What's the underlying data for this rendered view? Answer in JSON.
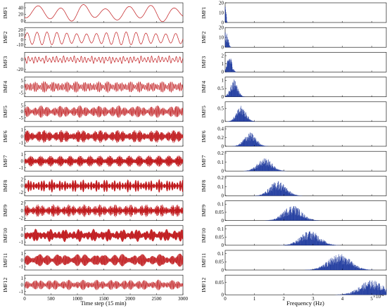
{
  "chart_data": [
    {
      "type": "line",
      "name": "IMF time series (left column)",
      "xlabel": "Time step (15 min)",
      "xlim": [
        0,
        3000
      ],
      "xticks": [
        0,
        500,
        1000,
        1500,
        2000,
        2500,
        3000
      ],
      "color": "#c0181b",
      "panels": [
        {
          "label": "IMF1",
          "yticks": [
            0,
            20,
            40
          ],
          "ylim": [
            -5,
            55
          ],
          "amplitude": 22,
          "offset": 24,
          "cycles": 7
        },
        {
          "label": "IMF2",
          "yticks": [
            -10,
            0,
            10,
            20
          ],
          "ylim": [
            -15,
            25
          ],
          "amplitude": 13,
          "offset": 3,
          "cycles": 16
        },
        {
          "label": "IMF3",
          "yticks": [
            -20,
            0
          ],
          "ylim": [
            -25,
            15
          ],
          "amplitude": 8,
          "offset": 0,
          "cycles": 45
        },
        {
          "label": "IMF4",
          "yticks": [
            -5,
            0,
            5
          ],
          "ylim": [
            -8,
            8
          ],
          "amplitude": 4.5,
          "offset": 0,
          "cycles": 95
        },
        {
          "label": "IMF5",
          "yticks": [
            -5,
            0,
            5
          ],
          "ylim": [
            -8,
            8
          ],
          "amplitude": 5,
          "offset": 0,
          "cycles": 180
        },
        {
          "label": "IMF6",
          "yticks": [
            -1,
            0,
            1
          ],
          "ylim": [
            -1.5,
            1.5
          ],
          "amplitude": 1.0,
          "offset": 0,
          "cycles": 320
        },
        {
          "label": "IMF7",
          "yticks": [
            -1,
            0,
            1
          ],
          "ylim": [
            -1.5,
            1.5
          ],
          "amplitude": 0.9,
          "offset": 0,
          "cycles": 420
        },
        {
          "label": "IMF8",
          "yticks": [
            -2,
            0,
            2
          ],
          "ylim": [
            -3,
            3
          ],
          "amplitude": 2.0,
          "offset": 0,
          "cycles": 520
        },
        {
          "label": "IMF9",
          "yticks": [
            -2,
            0,
            2
          ],
          "ylim": [
            -2.6,
            2.6
          ],
          "amplitude": 1.7,
          "offset": 0,
          "cycles": 620
        },
        {
          "label": "IMF10",
          "yticks": [
            -1,
            0,
            1
          ],
          "ylim": [
            -1.5,
            1.5
          ],
          "amplitude": 1.0,
          "offset": 0,
          "cycles": 720
        },
        {
          "label": "IMF11",
          "yticks": [
            -1,
            0,
            1
          ],
          "ylim": [
            -1.5,
            1.5
          ],
          "amplitude": 1.0,
          "offset": 0,
          "cycles": 820
        },
        {
          "label": "IMF12",
          "yticks": [
            -1,
            0,
            1
          ],
          "ylim": [
            -1.5,
            1.5
          ],
          "amplitude": 0.8,
          "offset": 0,
          "cycles": 920
        }
      ]
    },
    {
      "type": "bar",
      "name": "IMF spectra (right column)",
      "xlabel": "Frequency (Hz)",
      "xlim": [
        0,
        5.5
      ],
      "xticks": [
        0,
        1,
        2,
        3,
        4,
        5
      ],
      "x_multiplier": "×10",
      "x_exponent": "-4",
      "color": "#1f3a9e",
      "panels": [
        {
          "label": "IMF1",
          "yticks": [
            0,
            10,
            20
          ],
          "ylim": [
            0,
            20
          ],
          "peak_freq": 0.02,
          "peak": 16,
          "width": 0.02
        },
        {
          "label": "IMF2",
          "yticks": [
            0,
            10,
            20
          ],
          "ylim": [
            0,
            20
          ],
          "peak_freq": 0.06,
          "peak": 15,
          "width": 0.05
        },
        {
          "label": "IMF3",
          "yticks": [
            0,
            1,
            2
          ],
          "ylim": [
            0,
            2.4
          ],
          "peak_freq": 0.15,
          "peak": 2.1,
          "width": 0.08
        },
        {
          "label": "IMF4",
          "yticks": [
            0,
            0.5,
            1
          ],
          "ylim": [
            0,
            1.2
          ],
          "peak_freq": 0.3,
          "peak": 1.05,
          "width": 0.12
        },
        {
          "label": "IMF5",
          "yticks": [
            0,
            0.5
          ],
          "ylim": [
            0,
            0.75
          ],
          "peak_freq": 0.55,
          "peak": 0.6,
          "width": 0.16
        },
        {
          "label": "IMF6",
          "yticks": [
            0,
            0.2,
            0.4
          ],
          "ylim": [
            0,
            0.45
          ],
          "peak_freq": 0.85,
          "peak": 0.32,
          "width": 0.2
        },
        {
          "label": "IMF7",
          "yticks": [
            0,
            0.1,
            0.2
          ],
          "ylim": [
            0,
            0.22
          ],
          "peak_freq": 1.35,
          "peak": 0.15,
          "width": 0.24
        },
        {
          "label": "IMF8",
          "yticks": [
            0,
            0.1,
            0.2
          ],
          "ylim": [
            0,
            0.22
          ],
          "peak_freq": 1.8,
          "peak": 0.17,
          "width": 0.27
        },
        {
          "label": "IMF9",
          "yticks": [
            0,
            0.05,
            0.1
          ],
          "ylim": [
            0,
            0.12
          ],
          "peak_freq": 2.3,
          "peak": 0.095,
          "width": 0.3
        },
        {
          "label": "IMF10",
          "yticks": [
            0,
            0.05,
            0.1
          ],
          "ylim": [
            0,
            0.12
          ],
          "peak_freq": 2.9,
          "peak": 0.09,
          "width": 0.33
        },
        {
          "label": "IMF11",
          "yticks": [
            0,
            0.05,
            0.1
          ],
          "ylim": [
            0,
            0.12
          ],
          "peak_freq": 3.9,
          "peak": 0.1,
          "width": 0.38
        },
        {
          "label": "IMF12",
          "yticks": [
            0,
            0.05
          ],
          "ylim": [
            0,
            0.08
          ],
          "peak_freq": 5.0,
          "peak": 0.06,
          "width": 0.4
        }
      ]
    }
  ]
}
